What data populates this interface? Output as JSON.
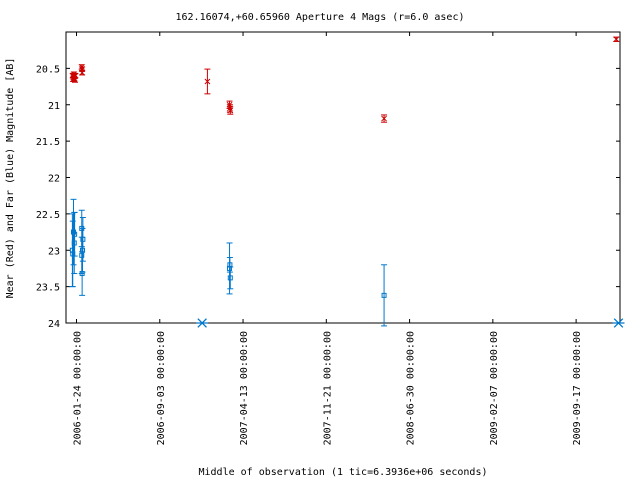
{
  "chart_data": {
    "type": "scatter",
    "title": "162.16074,+60.65960   Aperture 4 Mags (r=6.0 asec)",
    "xlabel": "Middle of observation (1 tic=6.3936e+06 seconds)",
    "ylabel": "Near (Red) and Far (Blue) Magnitude [AB]",
    "x_ticks": [
      "2006-01-24 00:00:00",
      "2006-09-03 00:00:00",
      "2007-04-13 00:00:00",
      "2007-11-21 00:00:00",
      "2008-06-30 00:00:00",
      "2009-02-07 00:00:00",
      "2009-09-17 00:00:00"
    ],
    "xlim": [
      "2005-12-27",
      "2010-01-12"
    ],
    "y_ticks": [
      "20.5",
      "21",
      "21.5",
      "22",
      "22.5",
      "23",
      "23.5",
      "24"
    ],
    "ylim": [
      24,
      20.0
    ],
    "y_inverted": true,
    "grid": false,
    "colors": {
      "near": "#cc0000",
      "far": "#0077cc"
    },
    "series": [
      {
        "key": "near",
        "marker": "x",
        "points": [
          {
            "x": "2006-01-14",
            "y": 20.6,
            "err": 0.03
          },
          {
            "x": "2006-01-15",
            "y": 20.65,
            "err": 0.03
          },
          {
            "x": "2006-01-16",
            "y": 20.62,
            "err": 0.03
          },
          {
            "x": "2006-01-17",
            "y": 20.58,
            "err": 0.03
          },
          {
            "x": "2006-01-18",
            "y": 20.64,
            "err": 0.03
          },
          {
            "x": "2006-01-19",
            "y": 20.61,
            "err": 0.03
          },
          {
            "x": "2006-01-20",
            "y": 20.66,
            "err": 0.03
          },
          {
            "x": "2006-01-21",
            "y": 20.6,
            "err": 0.03
          },
          {
            "x": "2006-02-07",
            "y": 20.48,
            "err": 0.03
          },
          {
            "x": "2006-02-08",
            "y": 20.51,
            "err": 0.03
          },
          {
            "x": "2006-02-08",
            "y": 20.56,
            "err": 0.03
          },
          {
            "x": "2007-01-08",
            "y": 20.68,
            "err": 0.17
          },
          {
            "x": "2007-03-08",
            "y": 21.0,
            "err": 0.05
          },
          {
            "x": "2007-03-09",
            "y": 21.05,
            "err": 0.05
          },
          {
            "x": "2007-03-10",
            "y": 21.08,
            "err": 0.05
          },
          {
            "x": "2008-04-23",
            "y": 21.19,
            "err": 0.05
          },
          {
            "x": "2010-01-02",
            "y": 20.1,
            "err": 0.03
          }
        ]
      },
      {
        "key": "far",
        "marker": "square",
        "points": [
          {
            "x": "2006-01-13",
            "y": 23.0,
            "err": 0.5
          },
          {
            "x": "2006-01-14",
            "y": 23.05,
            "err": 0.45
          },
          {
            "x": "2006-01-16",
            "y": 22.75,
            "err": 0.45
          },
          {
            "x": "2006-01-18",
            "y": 22.9,
            "err": 0.42
          },
          {
            "x": "2006-01-19",
            "y": 22.78,
            "err": 0.3
          },
          {
            "x": "2006-02-07",
            "y": 22.7,
            "err": 0.25
          },
          {
            "x": "2006-02-07",
            "y": 23.07,
            "err": 0.25
          },
          {
            "x": "2006-02-08",
            "y": 23.32,
            "err": 0.3
          },
          {
            "x": "2006-02-09",
            "y": 23.0,
            "err": 0.3
          },
          {
            "x": "2006-02-10",
            "y": 22.85,
            "err": 0.3
          },
          {
            "x": "2007-03-08",
            "y": 23.25,
            "err": 0.35
          },
          {
            "x": "2007-03-09",
            "y": 23.2,
            "err": 0.1
          },
          {
            "x": "2007-03-10",
            "y": 23.38,
            "err": 0.15
          },
          {
            "x": "2008-04-23",
            "y": 23.62,
            "err": 0.42
          }
        ]
      },
      {
        "key": "limits",
        "marker": "asterisk",
        "points": [
          {
            "x": "2006-12-25",
            "y": 24.0
          },
          {
            "x": "2010-01-08",
            "y": 24.0
          }
        ]
      }
    ]
  }
}
